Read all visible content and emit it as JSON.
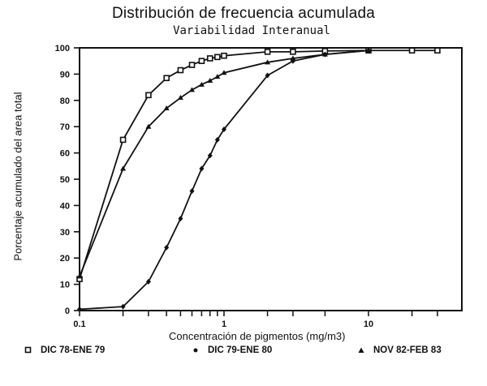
{
  "chart_data": {
    "type": "line",
    "title": "Distribución de frecuencia acumulada",
    "subtitle": "Variabilidad Interanual",
    "xlabel": "Concentración de pigmentos (mg/m3)",
    "ylabel": "Porcentaje acumulado del area total",
    "xscale": "log",
    "xlim": [
      0.1,
      40
    ],
    "ylim": [
      0,
      100
    ],
    "x_tick_labels": [
      "0.1",
      "1",
      "10"
    ],
    "y_tick_labels": [
      "0",
      "10",
      "20",
      "30",
      "40",
      "50",
      "60",
      "70",
      "80",
      "90",
      "100"
    ],
    "grid": false,
    "legend_position": "bottom",
    "series": [
      {
        "name": "DIC 78-ENE 79",
        "marker": "square",
        "x": [
          0.1,
          0.2,
          0.3,
          0.4,
          0.5,
          0.6,
          0.7,
          0.8,
          0.9,
          1.0,
          2,
          3,
          5,
          10,
          20,
          30
        ],
        "y": [
          12,
          65,
          82,
          88.5,
          91.5,
          93.5,
          95,
          96,
          96.5,
          97,
          98.5,
          98.5,
          98.8,
          99,
          99,
          99
        ]
      },
      {
        "name": "DIC 79-ENE 80",
        "marker": "diamond",
        "x": [
          0.1,
          0.2,
          0.3,
          0.4,
          0.5,
          0.6,
          0.7,
          0.8,
          0.9,
          1.0,
          2,
          3,
          5,
          10
        ],
        "y": [
          0.5,
          1.5,
          11,
          24,
          35,
          45.5,
          54,
          59,
          65,
          69,
          89.5,
          95,
          97.5,
          99
        ]
      },
      {
        "name": "NOV 82-FEB 83",
        "marker": "triangle",
        "x": [
          0.1,
          0.2,
          0.3,
          0.4,
          0.5,
          0.6,
          0.7,
          0.8,
          0.9,
          1.0,
          2,
          3,
          5,
          10
        ],
        "y": [
          13,
          54,
          70,
          77,
          81,
          84,
          86,
          87.5,
          89,
          90.5,
          94.5,
          96,
          97.5,
          99
        ]
      }
    ]
  },
  "colors": {
    "ink": "#111111",
    "background": "#ffffff"
  }
}
